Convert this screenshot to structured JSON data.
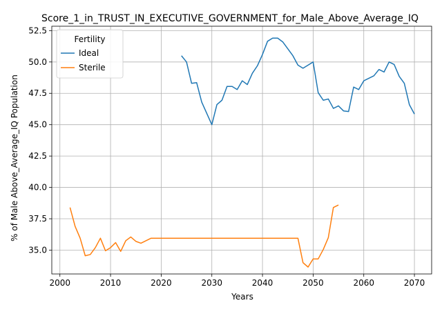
{
  "chart_data": {
    "type": "line",
    "title": "Score_1_in_TRUST_IN_EXECUTIVE_GOVERNMENT_for_Male_Above_Average_IQ",
    "xlabel": "Years",
    "ylabel": "% of Male Above_Average_IQ Population",
    "xlim": [
      1998.4,
      2073.4
    ],
    "ylim": [
      33.1,
      52.85
    ],
    "xticks": [
      2000,
      2010,
      2020,
      2030,
      2040,
      2050,
      2060,
      2070
    ],
    "yticks": [
      35.0,
      37.5,
      40.0,
      42.5,
      45.0,
      47.5,
      50.0,
      52.5
    ],
    "grid": true,
    "legend": {
      "title": "Fertility",
      "placement": "upper-left"
    },
    "series": [
      {
        "name": "Ideal",
        "color": "#1f77b4",
        "x": [
          2024,
          2025,
          2026,
          2027,
          2028,
          2029,
          2030,
          2031,
          2032,
          2033,
          2034,
          2035,
          2036,
          2037,
          2038,
          2039,
          2040,
          2041,
          2042,
          2043,
          2044,
          2045,
          2046,
          2047,
          2048,
          2049,
          2050,
          2051,
          2052,
          2053,
          2054,
          2055,
          2056,
          2057,
          2058,
          2059,
          2060,
          2061,
          2062,
          2063,
          2064,
          2065,
          2066,
          2067,
          2068,
          2069,
          2070
        ],
        "y": [
          50.5,
          50.0,
          48.3,
          48.35,
          46.8,
          45.9,
          45.0,
          46.6,
          46.95,
          48.05,
          48.05,
          47.8,
          48.5,
          48.2,
          49.1,
          49.7,
          50.6,
          51.65,
          51.9,
          51.9,
          51.6,
          51.05,
          50.5,
          49.75,
          49.5,
          49.75,
          50.0,
          47.55,
          46.95,
          47.05,
          46.3,
          46.5,
          46.1,
          46.05,
          48.0,
          47.8,
          48.5,
          48.7,
          48.9,
          49.4,
          49.2,
          50.0,
          49.8,
          48.85,
          48.3,
          46.6,
          45.85
        ]
      },
      {
        "name": "Sterile",
        "color": "#ff7f0e",
        "x": [
          2002,
          2003,
          2004,
          2005,
          2006,
          2007,
          2008,
          2009,
          2010,
          2011,
          2012,
          2013,
          2014,
          2015,
          2016,
          2017,
          2018,
          2019,
          2020,
          2025,
          2030,
          2035,
          2040,
          2045,
          2047,
          2048,
          2049,
          2050,
          2051,
          2052,
          2053,
          2054,
          2055
        ],
        "y": [
          38.4,
          36.9,
          35.95,
          34.55,
          34.65,
          35.2,
          35.95,
          34.95,
          35.2,
          35.6,
          34.9,
          35.75,
          36.05,
          35.7,
          35.55,
          35.75,
          35.95,
          35.95,
          35.95,
          35.95,
          35.95,
          35.95,
          35.95,
          35.95,
          35.95,
          34.0,
          33.65,
          34.3,
          34.3,
          35.05,
          36.0,
          38.4,
          38.6
        ]
      }
    ]
  }
}
